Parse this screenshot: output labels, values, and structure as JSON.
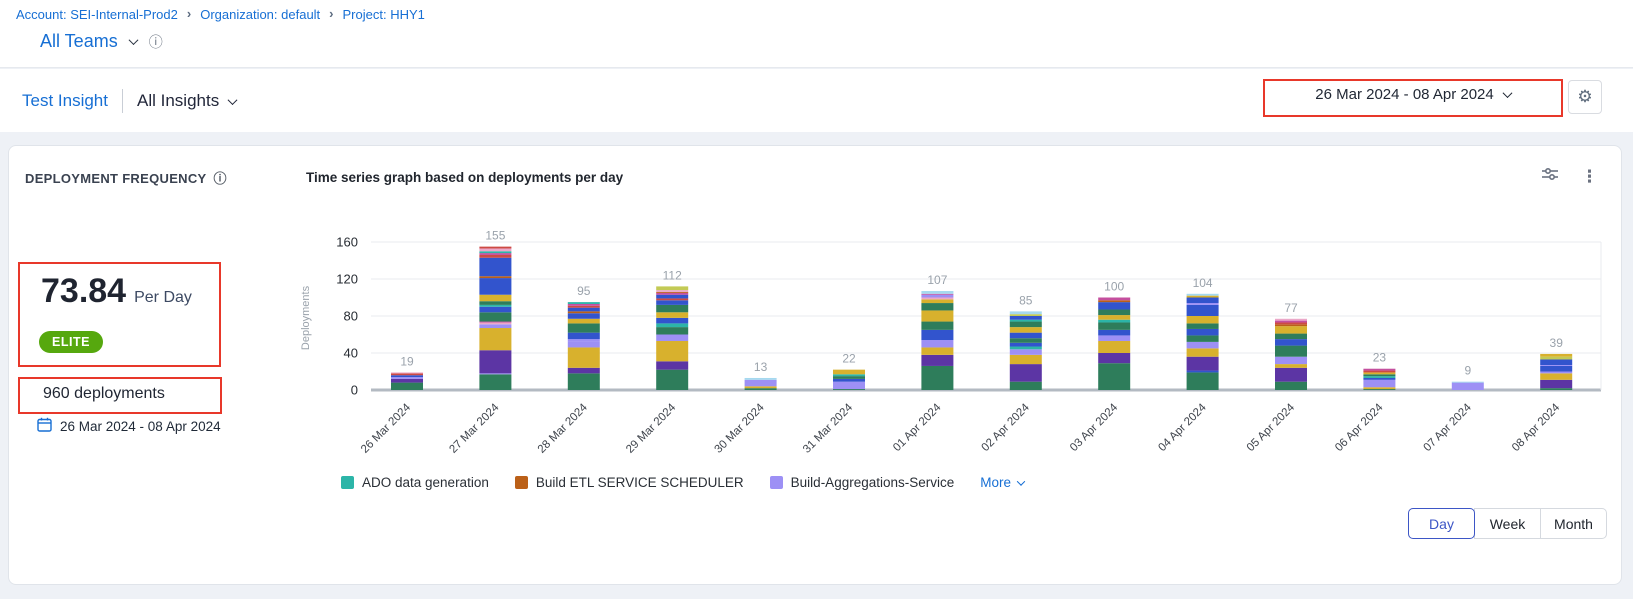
{
  "breadcrumb": {
    "items": [
      {
        "label": "Account: SEI-Internal-Prod2"
      },
      {
        "label": "Organization: default"
      },
      {
        "label": "Project: HHY1"
      }
    ]
  },
  "team_selector": {
    "label": "All Teams",
    "info_icon": "info-circle"
  },
  "insight_nav": {
    "insight": "Test Insight",
    "scope": "All Insights"
  },
  "header_controls": {
    "date_range": "26 Mar 2024  -  08 Apr 2024",
    "gear_icon": "settings-gear",
    "gear_glyph": "⚙"
  },
  "widget": {
    "title": "DEPLOYMENT FREQUENCY",
    "metric": {
      "value": "73.84",
      "unit": "Per Day",
      "badge": "ELITE",
      "badge_color": "#56a80e"
    },
    "total_deployments": "960 deployments",
    "date_range": "26 Mar 2024 - 08 Apr 2024",
    "chart_title": "Time series graph based on deployments per day",
    "icons": {
      "filter": "sliders-icon",
      "menu": "kebab-menu-icon",
      "kebab_glyph": "⋮"
    }
  },
  "legend": {
    "items": [
      {
        "label": "ADO data generation",
        "color": "#2cb5a8"
      },
      {
        "label": "Build ETL SERVICE SCHEDULER",
        "color": "#bb6018"
      },
      {
        "label": "Build-Aggregations-Service",
        "color": "#9d90f5"
      }
    ],
    "more_label": "More"
  },
  "granularity": {
    "options": [
      "Day",
      "Week",
      "Month"
    ],
    "selected": "Day"
  },
  "chart_data": {
    "type": "bar",
    "stacked": true,
    "title": "Time series graph based on deployments per day",
    "ylabel": "Deployments",
    "ylim": [
      0,
      160
    ],
    "yticks": [
      0,
      40,
      80,
      120,
      160
    ],
    "grid": true,
    "legend_position": "bottom",
    "categories": [
      "26 Mar 2024",
      "27 Mar 2024",
      "28 Mar 2024",
      "29 Mar 2024",
      "30 Mar 2024",
      "31 Mar 2024",
      "01 Apr 2024",
      "02 Apr 2024",
      "03 Apr 2024",
      "04 Apr 2024",
      "05 Apr 2024",
      "06 Apr 2024",
      "07 Apr 2024",
      "08 Apr 2024"
    ],
    "totals": [
      19,
      155,
      95,
      112,
      13,
      22,
      107,
      85,
      100,
      104,
      77,
      23,
      9,
      39
    ],
    "palette": {
      "green": "#2e7d5b",
      "purple": "#5c35a4",
      "yellow": "#d8b12d",
      "periwinkle": "#9d90f5",
      "blue": "#3254cd",
      "teal": "#2cb5a8",
      "orange": "#bb6018",
      "red": "#cd4a44",
      "magenta": "#c44f9e",
      "pink": "#eba8c9",
      "khaki": "#c3ca55",
      "cyan": "#a5d9ef"
    },
    "bars": [
      [
        [
          "green",
          8
        ],
        [
          "purple",
          4
        ],
        [
          "periwinkle",
          2
        ],
        [
          "blue",
          2
        ],
        [
          "red",
          2
        ],
        [
          "pink",
          1
        ]
      ],
      [
        [
          "green",
          17
        ],
        [
          "periwinkle",
          1
        ],
        [
          "purple",
          25
        ],
        [
          "yellow",
          24
        ],
        [
          "periwinkle",
          4
        ],
        [
          "pink",
          2
        ],
        [
          "magenta",
          1
        ],
        [
          "green",
          10
        ],
        [
          "blue",
          6
        ],
        [
          "teal",
          2
        ],
        [
          "green",
          4
        ],
        [
          "yellow",
          7
        ],
        [
          "blue",
          18
        ],
        [
          "orange",
          2
        ],
        [
          "blue",
          20
        ],
        [
          "red",
          3
        ],
        [
          "magenta",
          2
        ],
        [
          "teal",
          2
        ],
        [
          "pink",
          3
        ],
        [
          "red",
          2
        ]
      ],
      [
        [
          "green",
          18
        ],
        [
          "purple",
          6
        ],
        [
          "yellow",
          22
        ],
        [
          "periwinkle",
          6
        ],
        [
          "periwinkle",
          3
        ],
        [
          "blue",
          7
        ],
        [
          "green",
          10
        ],
        [
          "yellow",
          5
        ],
        [
          "blue",
          6
        ],
        [
          "orange",
          2
        ],
        [
          "blue",
          4
        ],
        [
          "red",
          2
        ],
        [
          "magenta",
          2
        ],
        [
          "teal",
          2
        ]
      ],
      [
        [
          "green",
          22
        ],
        [
          "purple",
          9
        ],
        [
          "yellow",
          22
        ],
        [
          "periwinkle",
          7
        ],
        [
          "green",
          8
        ],
        [
          "teal",
          4
        ],
        [
          "blue",
          6
        ],
        [
          "yellow",
          6
        ],
        [
          "green",
          8
        ],
        [
          "blue",
          5
        ],
        [
          "red",
          2
        ],
        [
          "blue",
          4
        ],
        [
          "magenta",
          2
        ],
        [
          "orange",
          1
        ],
        [
          "pink",
          2
        ],
        [
          "khaki",
          4
        ]
      ],
      [
        [
          "green",
          2
        ],
        [
          "yellow",
          2
        ],
        [
          "periwinkle",
          7
        ],
        [
          "cyan",
          2
        ]
      ],
      [
        [
          "green",
          1
        ],
        [
          "periwinkle",
          8
        ],
        [
          "blue",
          3
        ],
        [
          "green",
          3
        ],
        [
          "teal",
          2
        ],
        [
          "yellow",
          5
        ]
      ],
      [
        [
          "green",
          26
        ],
        [
          "purple",
          12
        ],
        [
          "yellow",
          8
        ],
        [
          "periwinkle",
          8
        ],
        [
          "blue",
          11
        ],
        [
          "green",
          9
        ],
        [
          "yellow",
          12
        ],
        [
          "green",
          8
        ],
        [
          "yellow",
          4
        ],
        [
          "pink",
          2
        ],
        [
          "periwinkle",
          3
        ],
        [
          "magenta",
          1
        ],
        [
          "cyan",
          3
        ]
      ],
      [
        [
          "green",
          9
        ],
        [
          "purple",
          19
        ],
        [
          "yellow",
          10
        ],
        [
          "periwinkle",
          6
        ],
        [
          "teal",
          3
        ],
        [
          "blue",
          4
        ],
        [
          "green",
          5
        ],
        [
          "blue",
          6
        ],
        [
          "yellow",
          6
        ],
        [
          "green",
          6
        ],
        [
          "teal",
          2
        ],
        [
          "blue",
          4
        ],
        [
          "khaki",
          2
        ],
        [
          "cyan",
          3
        ]
      ],
      [
        [
          "green",
          29
        ],
        [
          "purple",
          11
        ],
        [
          "yellow",
          13
        ],
        [
          "periwinkle",
          6
        ],
        [
          "blue",
          6
        ],
        [
          "green",
          8
        ],
        [
          "teal",
          3
        ],
        [
          "yellow",
          5
        ],
        [
          "green",
          6
        ],
        [
          "blue",
          8
        ],
        [
          "orange",
          2
        ],
        [
          "magenta",
          3
        ]
      ],
      [
        [
          "green",
          19
        ],
        [
          "blue",
          2
        ],
        [
          "purple",
          15
        ],
        [
          "yellow",
          9
        ],
        [
          "periwinkle",
          7
        ],
        [
          "green",
          7
        ],
        [
          "blue",
          7
        ],
        [
          "green",
          6
        ],
        [
          "yellow",
          8
        ],
        [
          "blue",
          12
        ],
        [
          "periwinkle",
          2
        ],
        [
          "blue",
          6
        ],
        [
          "yellow",
          2
        ],
        [
          "cyan",
          2
        ]
      ],
      [
        [
          "green",
          9
        ],
        [
          "purple",
          15
        ],
        [
          "yellow",
          4
        ],
        [
          "periwinkle",
          8
        ],
        [
          "green",
          12
        ],
        [
          "blue",
          7
        ],
        [
          "green",
          6
        ],
        [
          "yellow",
          8
        ],
        [
          "orange",
          2
        ],
        [
          "red",
          2
        ],
        [
          "magenta",
          2
        ],
        [
          "pink",
          2
        ]
      ],
      [
        [
          "green",
          1
        ],
        [
          "yellow",
          2
        ],
        [
          "periwinkle",
          8
        ],
        [
          "blue",
          2
        ],
        [
          "teal",
          2
        ],
        [
          "green",
          2
        ],
        [
          "yellow",
          2
        ],
        [
          "red",
          2
        ],
        [
          "magenta",
          2
        ]
      ],
      [
        [
          "periwinkle",
          8
        ],
        [
          "cyan",
          1
        ]
      ],
      [
        [
          "green",
          2
        ],
        [
          "purple",
          9
        ],
        [
          "yellow",
          7
        ],
        [
          "periwinkle",
          2
        ],
        [
          "blue",
          6
        ],
        [
          "periwinkle",
          1
        ],
        [
          "blue",
          6
        ],
        [
          "khaki",
          3
        ],
        [
          "yellow",
          3
        ]
      ]
    ]
  }
}
